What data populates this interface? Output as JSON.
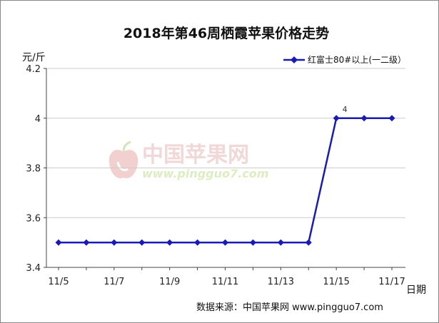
{
  "chart_data": {
    "type": "line",
    "title": "2018年第46周栖霞苹果价格走势",
    "ylabel": "元/斤",
    "xlabel": "日期",
    "categories": [
      "11/5",
      "11/6",
      "11/7",
      "11/8",
      "11/9",
      "11/10",
      "11/11",
      "11/12",
      "11/13",
      "11/14",
      "11/15",
      "11/16",
      "11/17"
    ],
    "x_tick_labels": [
      "11/5",
      "11/7",
      "11/9",
      "11/11",
      "11/13",
      "11/15",
      "11/17"
    ],
    "y_ticks": [
      "3.4",
      "3.6",
      "3.8",
      "4",
      "4.2"
    ],
    "ylim": [
      3.4,
      4.2
    ],
    "grid": "horizontal",
    "legend_position": "top-right",
    "series": [
      {
        "name": "红富士80#以上(一二级）",
        "color": "#1a1ab4",
        "values": [
          3.5,
          3.5,
          3.5,
          3.5,
          3.5,
          3.5,
          3.5,
          3.5,
          3.5,
          3.5,
          4,
          4,
          4
        ]
      }
    ],
    "annotations": [
      {
        "category": "11/15",
        "text": "4"
      }
    ]
  },
  "watermark": {
    "text": "中国苹果网",
    "url": "www.pingguo7.com"
  },
  "source_note": "数据来源：中国苹果网 www.pingguo7.com"
}
